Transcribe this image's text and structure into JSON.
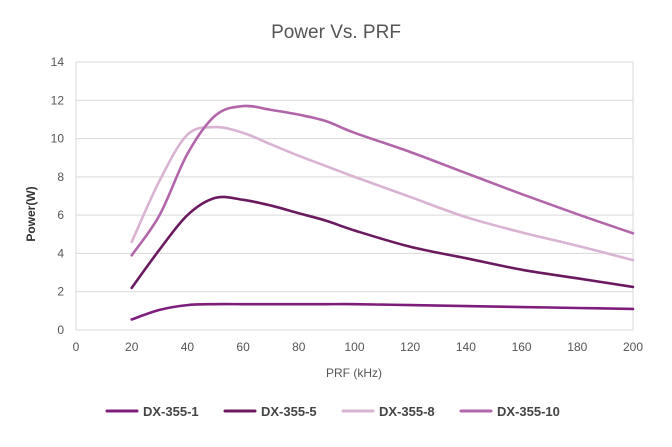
{
  "chart_data": {
    "type": "line",
    "title": "Power Vs. PRF",
    "xlabel": "PRF (kHz)",
    "ylabel": "Power(W)",
    "xlim": [
      0,
      200
    ],
    "ylim": [
      0,
      14
    ],
    "x_ticks": [
      0,
      20,
      40,
      60,
      80,
      100,
      120,
      140,
      160,
      180,
      200
    ],
    "y_ticks": [
      0,
      2,
      4,
      6,
      8,
      10,
      12,
      14
    ],
    "grid": "horizontal",
    "legend_position": "bottom",
    "series": [
      {
        "name": "DX-355-1",
        "color": "#7e1e7c",
        "x": [
          20,
          30,
          40,
          50,
          60,
          70,
          80,
          90,
          100,
          120,
          140,
          160,
          180,
          200
        ],
        "y": [
          0.55,
          1.05,
          1.3,
          1.35,
          1.35,
          1.35,
          1.35,
          1.35,
          1.35,
          1.3,
          1.25,
          1.2,
          1.15,
          1.1
        ]
      },
      {
        "name": "DX-355-5",
        "color": "#6b1a5f",
        "x": [
          20,
          30,
          40,
          50,
          60,
          70,
          80,
          90,
          100,
          120,
          140,
          160,
          180,
          200
        ],
        "y": [
          2.2,
          4.2,
          6.0,
          6.9,
          6.8,
          6.5,
          6.1,
          5.7,
          5.2,
          4.35,
          3.75,
          3.15,
          2.7,
          2.25
        ]
      },
      {
        "name": "DX-355-8",
        "color": "#d9b3d2",
        "x": [
          20,
          30,
          40,
          50,
          60,
          70,
          80,
          90,
          100,
          120,
          140,
          160,
          180,
          200
        ],
        "y": [
          4.6,
          7.8,
          10.2,
          10.6,
          10.3,
          9.7,
          9.1,
          8.55,
          8.0,
          6.95,
          5.9,
          5.1,
          4.4,
          3.65
        ]
      },
      {
        "name": "DX-355-10",
        "color": "#b266aa",
        "x": [
          20,
          30,
          40,
          50,
          60,
          70,
          80,
          90,
          100,
          120,
          140,
          160,
          180,
          200
        ],
        "y": [
          3.9,
          6.0,
          9.2,
          11.2,
          11.7,
          11.5,
          11.25,
          10.9,
          10.3,
          9.3,
          8.2,
          7.1,
          6.05,
          5.05
        ]
      }
    ]
  }
}
